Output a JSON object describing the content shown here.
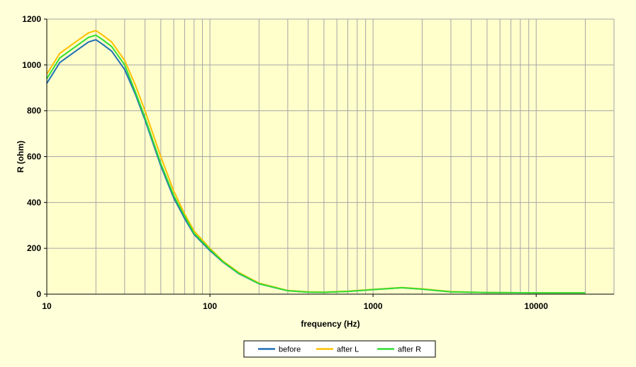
{
  "chart_data": {
    "type": "line",
    "title": "",
    "xlabel": "frequency (Hz)",
    "ylabel": "R (ohm)",
    "x_scale": "log",
    "xlim": [
      10,
      30000
    ],
    "ylim": [
      0,
      1200
    ],
    "x_ticks": [
      10,
      100,
      1000,
      10000
    ],
    "x_tick_labels": [
      "10",
      "100",
      "1000",
      "10000"
    ],
    "y_ticks": [
      0,
      200,
      400,
      600,
      800,
      1000,
      1200
    ],
    "y_tick_labels": [
      "0",
      "200",
      "400",
      "600",
      "800",
      "1000",
      "1200"
    ],
    "grid": true,
    "legend_position": "bottom-center",
    "colors": {
      "plot_background": "#ffffcc",
      "page_background": "#ffffd9",
      "grid": "#a6a6a6"
    },
    "x": [
      10,
      12,
      15,
      18,
      20,
      22,
      25,
      30,
      35,
      40,
      50,
      60,
      70,
      80,
      100,
      120,
      150,
      200,
      300,
      400,
      500,
      700,
      1000,
      1500,
      2000,
      3000,
      5000,
      10000,
      20000
    ],
    "series": [
      {
        "name": "before",
        "color": "#1f6fb5",
        "values": [
          920,
          1010,
          1060,
          1100,
          1110,
          1090,
          1060,
          980,
          870,
          760,
          560,
          420,
          330,
          260,
          190,
          140,
          90,
          45,
          15,
          9,
          8,
          12,
          20,
          28,
          22,
          10,
          7,
          6,
          6
        ]
      },
      {
        "name": "after L",
        "color": "#ffc000",
        "values": [
          960,
          1050,
          1100,
          1140,
          1150,
          1130,
          1100,
          1020,
          910,
          800,
          600,
          450,
          350,
          275,
          200,
          145,
          95,
          48,
          16,
          10,
          9,
          13,
          21,
          29,
          23,
          11,
          7,
          6,
          6
        ]
      },
      {
        "name": "after R",
        "color": "#33dd33",
        "values": [
          940,
          1030,
          1080,
          1120,
          1130,
          1110,
          1080,
          1000,
          880,
          770,
          570,
          430,
          340,
          265,
          195,
          142,
          92,
          46,
          15,
          9,
          8,
          12,
          20,
          28,
          22,
          10,
          7,
          6,
          6
        ]
      }
    ]
  }
}
